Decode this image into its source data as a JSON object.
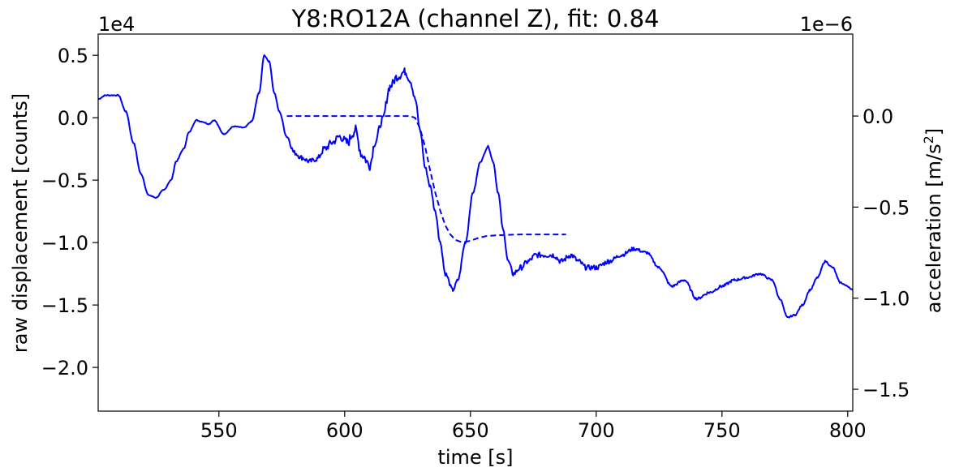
{
  "chart_data": {
    "type": "line",
    "title": "Y8:RO12A  (channel Z), fit: 0.84",
    "xlabel": "time [s]",
    "ylabel_left": "raw displacement [counts]",
    "ylabel_right_prefix": "acceleration [m/s",
    "ylabel_right_sup": "2",
    "ylabel_right_suffix": "]",
    "offset_left": "1e4",
    "offset_right": "1e−6",
    "xlim": [
      502,
      802
    ],
    "ylim_left": [
      -2.35,
      0.67
    ],
    "ylim_right": [
      -1.62,
      0.45
    ],
    "xticks": [
      550,
      600,
      650,
      700,
      750,
      800
    ],
    "xtick_labels": [
      "550",
      "600",
      "650",
      "700",
      "750",
      "800"
    ],
    "yticks_left": [
      0.5,
      0.0,
      -0.5,
      -1.0,
      -1.5,
      -2.0
    ],
    "ytick_labels_left": [
      "0.5",
      "0.0",
      "−0.5",
      "−1.0",
      "−1.5",
      "−2.0"
    ],
    "yticks_right": [
      0.0,
      -0.5,
      -1.0,
      -1.5
    ],
    "ytick_labels_right": [
      "0.0",
      "−0.5",
      "−1.0",
      "−1.5"
    ],
    "grid": false,
    "series": [
      {
        "role": "raw displacement",
        "axis": "left",
        "style": "solid",
        "color": "#0000ff",
        "x": [
          502,
          505,
          510,
          513,
          516,
          519,
          522,
          525,
          528,
          531,
          533,
          536,
          538,
          541,
          543,
          546,
          548,
          552,
          556,
          560,
          563,
          566,
          568,
          570,
          572,
          574,
          577,
          580,
          583,
          586,
          589,
          592,
          595,
          598,
          601,
          604,
          607,
          610,
          612,
          615,
          618,
          621,
          624,
          626,
          628,
          630,
          632,
          634,
          636,
          638,
          640,
          643,
          645,
          648,
          651,
          654,
          657,
          659,
          661,
          663,
          665,
          667,
          670,
          673,
          676,
          680,
          683,
          686,
          690,
          693,
          696,
          700,
          705,
          710,
          715,
          720,
          725,
          730,
          735,
          740,
          745,
          750,
          755,
          760,
          765,
          770,
          773,
          776,
          779,
          782,
          785,
          788,
          791,
          794,
          797,
          800,
          802
        ],
        "y": [
          0.15,
          0.18,
          0.18,
          0.05,
          -0.2,
          -0.45,
          -0.62,
          -0.64,
          -0.58,
          -0.5,
          -0.35,
          -0.25,
          -0.12,
          -0.02,
          -0.03,
          -0.05,
          -0.02,
          -0.13,
          -0.07,
          -0.08,
          -0.03,
          0.2,
          0.5,
          0.45,
          0.2,
          0.05,
          -0.15,
          -0.28,
          -0.32,
          -0.35,
          -0.33,
          -0.25,
          -0.2,
          -0.15,
          -0.2,
          -0.1,
          -0.3,
          -0.38,
          -0.2,
          -0.02,
          0.25,
          0.33,
          0.37,
          0.3,
          0.15,
          -0.1,
          -0.4,
          -0.55,
          -0.75,
          -1.0,
          -1.25,
          -1.38,
          -1.3,
          -1.0,
          -0.6,
          -0.35,
          -0.23,
          -0.35,
          -0.6,
          -0.9,
          -1.15,
          -1.25,
          -1.2,
          -1.15,
          -1.1,
          -1.1,
          -1.1,
          -1.15,
          -1.1,
          -1.15,
          -1.2,
          -1.2,
          -1.15,
          -1.1,
          -1.05,
          -1.08,
          -1.2,
          -1.35,
          -1.3,
          -1.45,
          -1.4,
          -1.35,
          -1.3,
          -1.28,
          -1.25,
          -1.3,
          -1.45,
          -1.6,
          -1.58,
          -1.5,
          -1.38,
          -1.28,
          -1.15,
          -1.2,
          -1.32,
          -1.35,
          -1.38
        ],
        "noise": [
          0.004,
          0.004,
          0.004,
          0.004,
          0.004,
          0.004,
          0.004,
          0.004,
          0.004,
          0.004,
          0.004,
          0.004,
          0.004,
          0.004,
          0.004,
          0.004,
          0.004,
          0.004,
          0.004,
          0.004,
          0.004,
          0.004,
          0.004,
          0.004,
          0.004,
          0.004,
          0.012,
          0.02,
          0.02,
          0.02,
          0.02,
          0.03,
          0.03,
          0.03,
          0.04,
          0.05,
          0.04,
          0.04,
          0.03,
          0.03,
          0.035,
          0.035,
          0.03,
          0.025,
          0.02,
          0.015,
          0.015,
          0.015,
          0.015,
          0.015,
          0.015,
          0.015,
          0.01,
          0.008,
          0.006,
          0.006,
          0.006,
          0.006,
          0.008,
          0.012,
          0.015,
          0.022,
          0.022,
          0.022,
          0.022,
          0.022,
          0.022,
          0.022,
          0.022,
          0.02,
          0.02,
          0.02,
          0.02,
          0.015,
          0.015,
          0.01,
          0.01,
          0.01,
          0.01,
          0.01,
          0.012,
          0.012,
          0.01,
          0.008,
          0.008,
          0.008,
          0.006,
          0.006,
          0.006,
          0.006,
          0.006,
          0.006,
          0.006,
          0.006,
          0.006,
          0.006,
          0.006
        ]
      },
      {
        "role": "fit",
        "axis": "right",
        "style": "dashed",
        "color": "#0000ff",
        "x": [
          577,
          590,
          600,
          610,
          620,
          626,
          628,
          630,
          632,
          634,
          636,
          638,
          640,
          642,
          644,
          646,
          648,
          650,
          653,
          656,
          660,
          665,
          670,
          675,
          680,
          688
        ],
        "y": [
          0.0,
          0.0,
          0.0,
          0.0,
          0.0,
          0.0,
          -0.01,
          -0.07,
          -0.17,
          -0.3,
          -0.42,
          -0.52,
          -0.6,
          -0.65,
          -0.68,
          -0.69,
          -0.69,
          -0.685,
          -0.67,
          -0.66,
          -0.655,
          -0.652,
          -0.65,
          -0.65,
          -0.65,
          -0.65
        ]
      }
    ]
  }
}
